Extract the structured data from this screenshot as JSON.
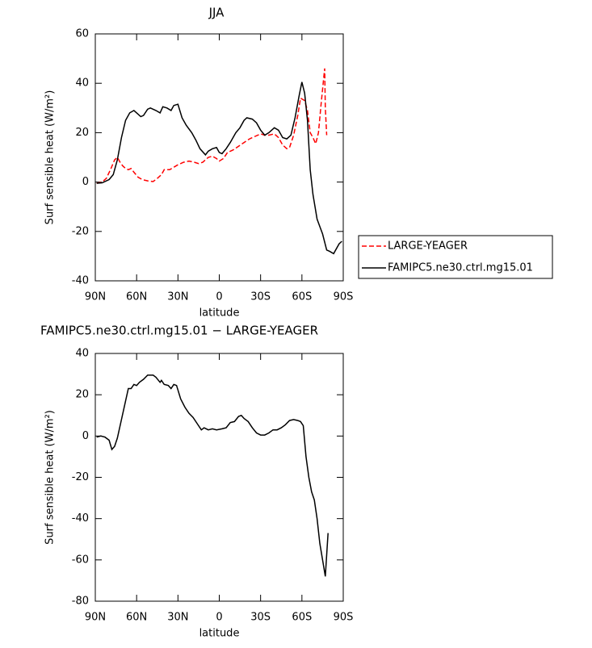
{
  "chart_data": [
    {
      "type": "line",
      "title": "JJA",
      "xlabel": "latitude",
      "ylabel": "Surf sensible heat (W/m²)",
      "xlim": [
        90,
        -90
      ],
      "xticks": [
        {
          "value": 90,
          "label": "90N"
        },
        {
          "value": 60,
          "label": "60N"
        },
        {
          "value": 30,
          "label": "30N"
        },
        0,
        {
          "value": -30,
          "label": "30S"
        },
        {
          "value": -60,
          "label": "60S"
        },
        {
          "value": -90,
          "label": "90S"
        }
      ],
      "ylim": [
        -40,
        60
      ],
      "yticks": [
        -40,
        -20,
        0,
        20,
        40,
        60
      ],
      "legend": "right",
      "series": [
        {
          "name": "LARGE-YEAGER",
          "color": "#ff0000",
          "style": "dashed",
          "x": [
            89,
            85,
            82,
            79,
            76,
            74,
            72,
            70,
            68,
            66,
            64,
            62,
            59,
            56,
            52,
            48,
            45,
            42,
            40,
            36,
            33,
            30,
            26,
            22,
            18,
            15,
            12,
            8,
            5,
            2,
            0,
            -3,
            -6,
            -10,
            -14,
            -18,
            -22,
            -26,
            -30,
            -33,
            -36,
            -40,
            -43,
            -46,
            -49,
            -51,
            -54,
            -57,
            -59,
            -62,
            -64,
            -66,
            -68,
            -70,
            -72,
            -74,
            -76.5,
            -77,
            -78
          ],
          "values": [
            -0.5,
            0,
            1.5,
            5,
            9,
            10,
            8,
            6.5,
            5.5,
            5,
            5.5,
            4,
            2,
            1,
            0.5,
            0.2,
            1.5,
            3,
            5,
            5,
            6,
            7,
            8,
            8.5,
            8,
            7.5,
            8,
            10,
            10.5,
            9.5,
            8.5,
            9.5,
            12,
            13,
            14.5,
            16,
            17.5,
            18.5,
            19.5,
            19,
            19,
            19.5,
            18,
            15,
            13.5,
            14,
            19,
            27,
            34,
            33,
            29,
            20,
            18,
            15.5,
            20,
            32,
            46,
            30,
            19
          ]
        },
        {
          "name": "FAMIPC5.ne30.ctrl.mg15.01",
          "color": "#000000",
          "style": "solid",
          "x": [
            89,
            85,
            80,
            77,
            74,
            71,
            68,
            65,
            62,
            60,
            57,
            55,
            52,
            50,
            46,
            43,
            41,
            38,
            35,
            33,
            30,
            27,
            24,
            20,
            17,
            14,
            10,
            8,
            5,
            2,
            0,
            -2,
            -5,
            -8,
            -12,
            -15,
            -18,
            -20,
            -24,
            -27,
            -30,
            -33,
            -36,
            -40,
            -43,
            -46,
            -49,
            -52,
            -55,
            -58,
            -60,
            -62,
            -64,
            -66,
            -68,
            -71,
            -73,
            -75,
            -78,
            -80,
            -83,
            -87,
            -89
          ],
          "values": [
            -0.5,
            -0.3,
            1,
            3,
            9,
            18,
            25,
            28,
            29,
            28,
            26.5,
            27,
            29.5,
            30,
            29,
            28,
            30.5,
            30,
            29,
            31,
            31.5,
            26,
            23,
            20,
            17,
            13.5,
            11,
            12.5,
            13.5,
            14,
            12,
            11.5,
            13.5,
            16,
            20,
            22,
            25,
            26,
            25.5,
            24,
            21,
            19,
            20,
            22,
            21,
            18,
            17.5,
            19,
            26,
            35,
            40.5,
            36,
            25,
            5,
            -5,
            -15,
            -18,
            -21,
            -27.5,
            -28,
            -29,
            -25,
            -24
          ]
        }
      ]
    },
    {
      "type": "line",
      "title": "FAMIPC5.ne30.ctrl.mg15.01 − LARGE-YEAGER",
      "xlabel": "latitude",
      "ylabel": "Surf sensible heat (W/m²)",
      "xlim": [
        90,
        -90
      ],
      "xticks": [
        {
          "value": 90,
          "label": "90N"
        },
        {
          "value": 60,
          "label": "60N"
        },
        {
          "value": 30,
          "label": "30N"
        },
        0,
        {
          "value": -30,
          "label": "30S"
        },
        {
          "value": -60,
          "label": "60S"
        },
        {
          "value": -90,
          "label": "90S"
        }
      ],
      "ylim": [
        -80,
        40
      ],
      "yticks": [
        -80,
        -60,
        -40,
        -20,
        0,
        20,
        40
      ],
      "series": [
        {
          "color": "#000000",
          "style": "solid",
          "x": [
            89,
            86,
            83,
            80,
            78,
            76,
            74,
            71,
            68,
            66,
            64,
            62,
            60,
            58,
            55,
            52,
            48,
            46,
            43,
            42,
            40,
            37,
            35,
            33,
            31,
            28,
            25,
            22,
            19,
            16,
            13,
            11,
            8,
            5,
            2,
            -2,
            -5,
            -8,
            -11,
            -14,
            -16,
            -18,
            -21,
            -24,
            -27,
            -30,
            -33,
            -36,
            -39,
            -42,
            -45,
            -48,
            -51,
            -54,
            -57,
            -59,
            -61,
            -63,
            -65,
            -67,
            -69,
            -71,
            -73,
            -75,
            -77,
            -79
          ],
          "values": [
            -0.5,
            0,
            -0.5,
            -2,
            -6.5,
            -5,
            -1,
            8,
            17,
            23,
            23,
            25,
            24.5,
            26,
            27.5,
            29.5,
            29.5,
            28.5,
            26,
            27,
            25,
            24.5,
            23,
            25,
            24.5,
            18,
            14,
            11,
            9,
            6,
            3,
            4,
            3,
            3.5,
            3,
            3.5,
            4,
            6.5,
            7,
            9.5,
            10,
            8.5,
            7,
            4,
            1.5,
            0.5,
            0.5,
            1.5,
            3,
            3,
            4,
            5.5,
            7.5,
            8,
            7.5,
            7,
            5,
            -10,
            -20,
            -27,
            -31,
            -40,
            -52,
            -60,
            -68,
            -47
          ]
        }
      ]
    }
  ]
}
